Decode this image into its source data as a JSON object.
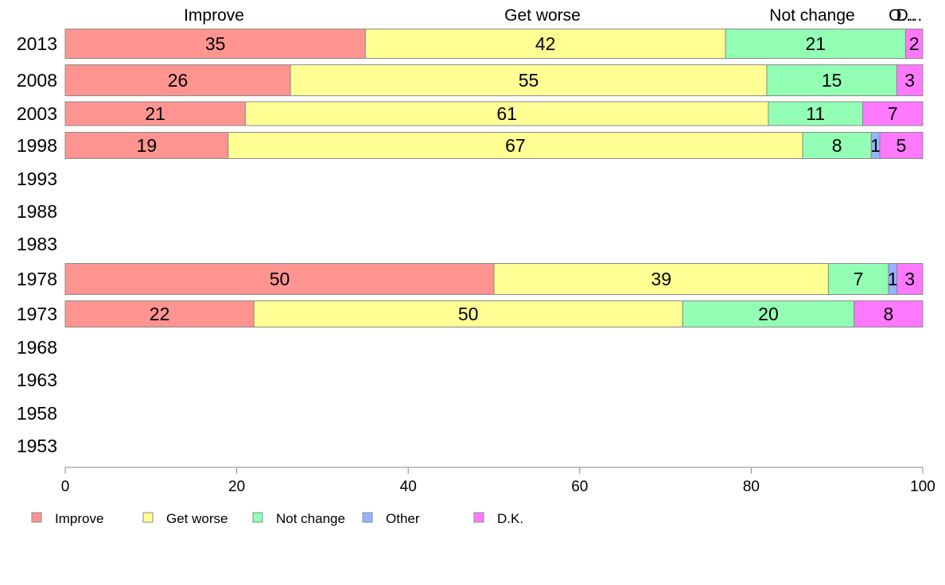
{
  "chart_data": {
    "type": "bar",
    "orientation": "horizontal",
    "stacked": true,
    "categories": [
      "2013",
      "2008",
      "2003",
      "1998",
      "1993",
      "1988",
      "1983",
      "1978",
      "1973",
      "1968",
      "1963",
      "1958",
      "1953"
    ],
    "series": [
      {
        "name": "Improve",
        "color": "#ff9491",
        "values": [
          35,
          26,
          21,
          19,
          null,
          null,
          null,
          50,
          22,
          null,
          null,
          null,
          null
        ]
      },
      {
        "name": "Get worse",
        "color": "#ffff93",
        "values": [
          42,
          55,
          61,
          67,
          null,
          null,
          null,
          39,
          50,
          null,
          null,
          null,
          null
        ]
      },
      {
        "name": "Not change",
        "color": "#93ffb4",
        "values": [
          21,
          15,
          11,
          8,
          null,
          null,
          null,
          7,
          20,
          null,
          null,
          null,
          null
        ]
      },
      {
        "name": "Other",
        "color": "#93b4ff",
        "values": [
          0,
          0,
          0,
          1,
          null,
          null,
          null,
          1,
          0,
          null,
          null,
          null,
          null
        ]
      },
      {
        "name": "D.K.",
        "color": "#ff79ff",
        "values": [
          2,
          3,
          7,
          5,
          null,
          null,
          null,
          3,
          8,
          null,
          null,
          null,
          null
        ]
      }
    ],
    "top_labels": [
      "Improve",
      "Get worse",
      "Not change",
      "O...",
      "D..."
    ],
    "xlim": [
      0,
      100
    ],
    "xticks": [
      0,
      20,
      40,
      60,
      80,
      100
    ],
    "grid": false,
    "legend_position": "bottom-left"
  }
}
